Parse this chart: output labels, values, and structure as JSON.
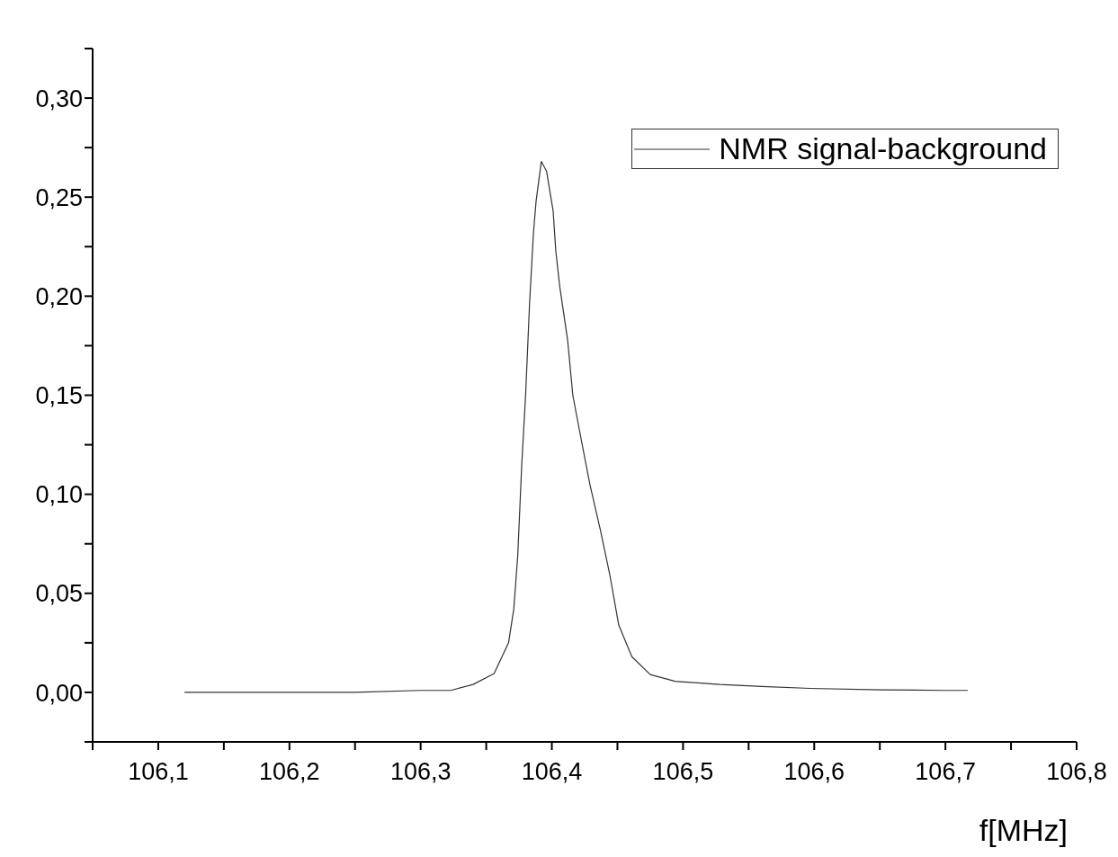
{
  "chart_data": {
    "type": "line",
    "xlabel": "f[MHz]",
    "x": [
      106.12,
      106.15,
      106.2,
      106.25,
      106.3,
      106.323,
      106.34,
      106.356,
      106.367,
      106.371,
      106.374,
      106.377,
      106.38,
      106.383,
      106.386,
      106.388,
      106.392,
      106.396,
      106.401,
      106.403,
      106.406,
      106.412,
      106.416,
      106.422,
      106.429,
      106.437,
      106.444,
      106.451,
      106.461,
      106.475,
      106.494,
      106.528,
      106.56,
      106.597,
      106.65,
      106.7,
      106.717
    ],
    "series": [
      {
        "name": "NMR signal-background",
        "color": "#333333",
        "values": [
          0,
          0,
          0,
          0,
          0.001,
          0.001,
          0.004,
          0.0095,
          0.025,
          0.042,
          0.069,
          0.114,
          0.15,
          0.196,
          0.232,
          0.248,
          0.268,
          0.263,
          0.243,
          0.223,
          0.205,
          0.178,
          0.15,
          0.129,
          0.105,
          0.082,
          0.06,
          0.034,
          0.018,
          0.009,
          0.0056,
          0.004,
          0.003,
          0.002,
          0.0013,
          0.001,
          0.001
        ]
      }
    ],
    "xlim": [
      106.05,
      106.8
    ],
    "xticks": [
      {
        "value": 106.05,
        "label": null
      },
      {
        "value": 106.1,
        "label": "106,1"
      },
      {
        "value": 106.15,
        "label": null
      },
      {
        "value": 106.2,
        "label": "106,2"
      },
      {
        "value": 106.25,
        "label": null
      },
      {
        "value": 106.3,
        "label": "106,3"
      },
      {
        "value": 106.35,
        "label": null
      },
      {
        "value": 106.4,
        "label": "106,4"
      },
      {
        "value": 106.45,
        "label": null
      },
      {
        "value": 106.5,
        "label": "106,5"
      },
      {
        "value": 106.55,
        "label": null
      },
      {
        "value": 106.6,
        "label": "106,6"
      },
      {
        "value": 106.65,
        "label": null
      },
      {
        "value": 106.7,
        "label": "106,7"
      },
      {
        "value": 106.75,
        "label": null
      },
      {
        "value": 106.8,
        "label": "106,8"
      }
    ],
    "ylim": [
      -0.025,
      0.325
    ],
    "yticks": [
      {
        "value": -0.025,
        "label": null
      },
      {
        "value": 0,
        "label": "0,00"
      },
      {
        "value": 0.025,
        "label": null
      },
      {
        "value": 0.05,
        "label": "0,05"
      },
      {
        "value": 0.075,
        "label": null
      },
      {
        "value": 0.1,
        "label": "0,10"
      },
      {
        "value": 0.125,
        "label": null
      },
      {
        "value": 0.15,
        "label": "0,15"
      },
      {
        "value": 0.175,
        "label": null
      },
      {
        "value": 0.2,
        "label": "0,20"
      },
      {
        "value": 0.225,
        "label": null
      },
      {
        "value": 0.25,
        "label": "0,25"
      },
      {
        "value": 0.275,
        "label": null
      },
      {
        "value": 0.3,
        "label": "0,30"
      },
      {
        "value": 0.325,
        "label": null
      }
    ],
    "grid": false,
    "legend": "top right",
    "marker": "none",
    "line_style": "solid"
  }
}
